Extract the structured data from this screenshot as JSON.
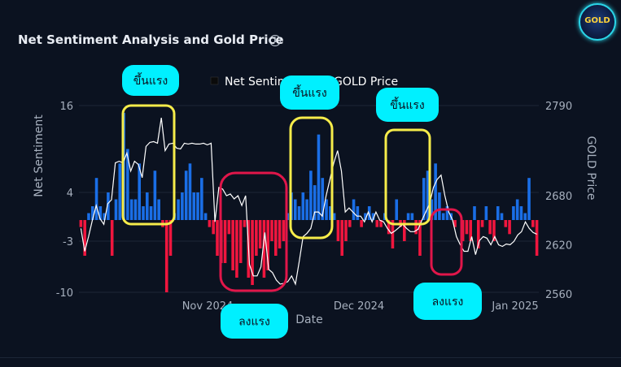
{
  "header": {
    "title": "Net Sentiment Analysis and Gold Price",
    "info_icon": "info-icon",
    "logo_text": "GOLD"
  },
  "chart_data": {
    "type": "bar",
    "title": "Net Sentiment Analysis and Gold Price",
    "xlabel": "Date",
    "ylabel": "Net Sentiment",
    "y2label": "GOLD Price",
    "ylim": [
      -10,
      16
    ],
    "y2lim": [
      2560,
      2790
    ],
    "yticks": [
      "16",
      "4",
      "-3",
      "-10"
    ],
    "y2ticks": [
      "2790",
      "2680",
      "2620",
      "2560"
    ],
    "xticks": [
      "Nov 2024",
      "Dec 2024",
      "Jan 2025"
    ],
    "legend": {
      "placement": "top",
      "entries": [
        "Net Sentiment",
        "GOLD Price"
      ]
    },
    "colors": {
      "positive": "#1a6ee6",
      "negative": "#f0163e",
      "price_line": "#ffffff",
      "grid": "#1c2636",
      "tick_text": "#a7b0be"
    },
    "series": [
      {
        "name": "Net Sentiment",
        "values": [
          -1,
          -5,
          1,
          2,
          6,
          2,
          1,
          4,
          -5,
          3,
          8,
          15,
          10,
          3,
          3,
          8,
          2,
          4,
          2,
          7,
          3,
          -1,
          -10,
          -5,
          1,
          3,
          4,
          7,
          8,
          4,
          4,
          6,
          1,
          -1,
          -2,
          -5,
          -6,
          -6,
          -2,
          -7,
          -8,
          -6,
          -1,
          -8,
          -9,
          -5,
          -4,
          -8,
          -7,
          -3,
          -5,
          -4,
          -3,
          1,
          4,
          3,
          2,
          4,
          3,
          7,
          5,
          12,
          6,
          3,
          2,
          1,
          -3,
          -5,
          -3,
          -1,
          3,
          2,
          -1,
          1,
          2,
          1,
          -1,
          -1,
          1,
          -2,
          -4,
          3,
          -1,
          -3,
          1,
          1,
          -2,
          -5,
          6,
          7,
          3,
          8,
          4,
          1,
          2,
          1,
          -1,
          0,
          -3,
          -2,
          -3,
          2,
          -4,
          -1,
          2,
          -2,
          -3,
          2,
          1,
          -1,
          -2,
          2,
          3,
          2,
          1,
          6,
          -1,
          -5
        ]
      },
      {
        "name": "GOLD Price",
        "values": [
          2640,
          2612,
          2630,
          2650,
          2668,
          2652,
          2645,
          2670,
          2675,
          2720,
          2722,
          2720,
          2732,
          2710,
          2722,
          2718,
          2702,
          2740,
          2745,
          2746,
          2744,
          2775,
          2735,
          2743,
          2744,
          2738,
          2737,
          2744,
          2743,
          2744,
          2743,
          2743,
          2744,
          2742,
          2744,
          2648,
          2690,
          2688,
          2680,
          2682,
          2676,
          2680,
          2668,
          2680,
          2596,
          2582,
          2582,
          2593,
          2635,
          2590,
          2586,
          2577,
          2572,
          2573,
          2575,
          2582,
          2572,
          2600,
          2630,
          2634,
          2640,
          2660,
          2660,
          2655,
          2680,
          2700,
          2720,
          2735,
          2710,
          2660,
          2665,
          2660,
          2655,
          2655,
          2648,
          2660,
          2648,
          2660,
          2650,
          2648,
          2640,
          2634,
          2637,
          2641,
          2645,
          2640,
          2636,
          2636,
          2639,
          2650,
          2660,
          2670,
          2690,
          2700,
          2705,
          2680,
          2660,
          2650,
          2630,
          2620,
          2612,
          2612,
          2630,
          2608,
          2625,
          2630,
          2628,
          2620,
          2630,
          2620,
          2618,
          2621,
          2620,
          2624,
          2632,
          2636,
          2648,
          2640,
          2635,
          2633
        ]
      }
    ],
    "annotations": [
      {
        "label": "ขึ้นแรง",
        "color": "#f6ec4a"
      },
      {
        "label": "ลงแรง",
        "color": "#e1164a"
      },
      {
        "label": "ขึ้นแรง",
        "color": "#f6ec4a"
      },
      {
        "label": "ขึ้นแรง",
        "color": "#f6ec4a"
      },
      {
        "label": "ลงแรง",
        "color": "#e1164a"
      }
    ],
    "callout_color": "#00f0ff"
  }
}
